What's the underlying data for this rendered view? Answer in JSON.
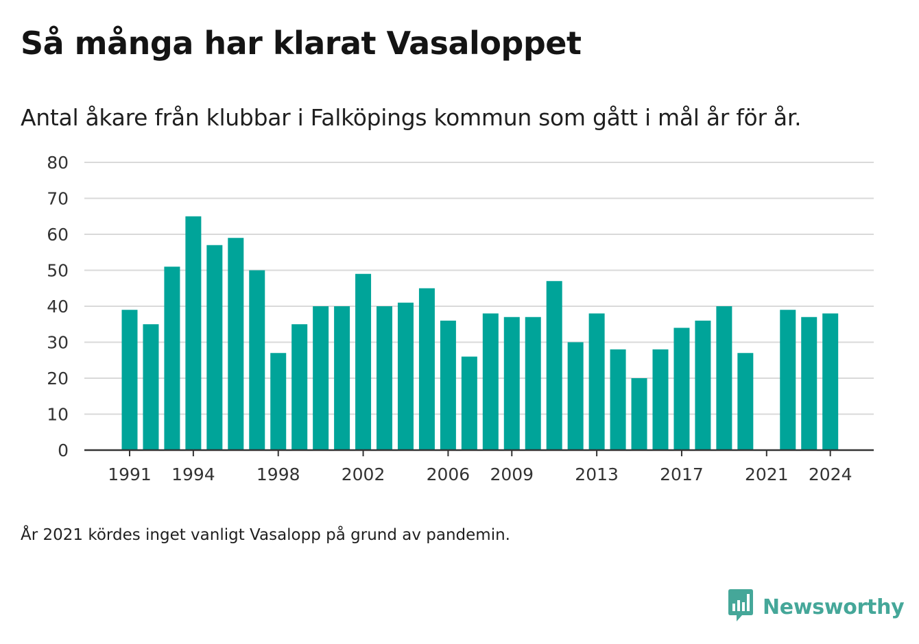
{
  "title": "Så många har klarat Vasaloppet",
  "subtitle": "Antal åkare från klubbar i Falköpings kommun som gått i mål år för år.",
  "note": "År 2021 kördes inget vanligt Vasalopp på grund av pandemin.",
  "brand": {
    "name": "Newsworthy",
    "icon": "newsworthy-logo-icon",
    "color": "#45a799"
  },
  "colors": {
    "bar": "#00a499",
    "grid": "#d9d9d9",
    "axis": "#333333",
    "text": "#1a1a1a"
  },
  "chart_data": {
    "type": "bar",
    "title": "Så många har klarat Vasaloppet",
    "subtitle": "Antal åkare från klubbar i Falköpings kommun som gått i mål år för år.",
    "xlabel": "",
    "ylabel": "",
    "ylim": [
      0,
      80
    ],
    "yticks": [
      0,
      10,
      20,
      30,
      40,
      50,
      60,
      70,
      80
    ],
    "xtick_labels": [
      "1991",
      "1994",
      "1998",
      "2002",
      "2006",
      "2009",
      "2013",
      "2017",
      "2021",
      "2024"
    ],
    "grid": true,
    "legend": "none",
    "categories": [
      "1991",
      "1992",
      "1993",
      "1994",
      "1995",
      "1996",
      "1997",
      "1998",
      "1999",
      "2000",
      "2001",
      "2002",
      "2003",
      "2004",
      "2005",
      "2006",
      "2007",
      "2008",
      "2009",
      "2010",
      "2011",
      "2012",
      "2013",
      "2014",
      "2015",
      "2016",
      "2017",
      "2018",
      "2019",
      "2020",
      "2021",
      "2022",
      "2023",
      "2024"
    ],
    "values": [
      39,
      35,
      51,
      65,
      57,
      59,
      50,
      27,
      35,
      40,
      40,
      49,
      40,
      41,
      45,
      36,
      26,
      38,
      37,
      37,
      47,
      30,
      38,
      28,
      20,
      28,
      34,
      36,
      40,
      27,
      null,
      39,
      37,
      38
    ]
  }
}
